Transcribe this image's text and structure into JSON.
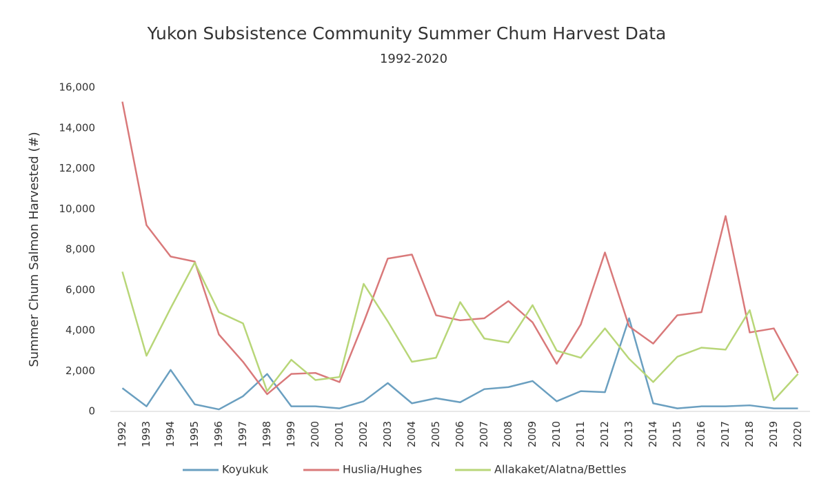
{
  "chart_data": {
    "type": "line",
    "title": "Yukon Subsistence Community Summer Chum Harvest Data",
    "subtitle": "1992-2020",
    "y_label": "Summer Chum Salmon Harvested (#)",
    "categories": [
      "1992",
      "1993",
      "1994",
      "1995",
      "1996",
      "1997",
      "1998",
      "1999",
      "2000",
      "2001",
      "2002",
      "2003",
      "2004",
      "2005",
      "2006",
      "2007",
      "2008",
      "2009",
      "2010",
      "2011",
      "2012",
      "2013",
      "2014",
      "2015",
      "2016",
      "2017",
      "2018",
      "2019",
      "2020"
    ],
    "series": [
      {
        "name": "Koyukuk",
        "color": "#6a9fc0",
        "values": [
          1150,
          250,
          2050,
          350,
          100,
          750,
          1850,
          250,
          250,
          150,
          500,
          1400,
          400,
          650,
          450,
          1100,
          1200,
          1500,
          500,
          1000,
          950,
          4600,
          400,
          150,
          250,
          250,
          300,
          150,
          150
        ]
      },
      {
        "name": "Huslia/Hughes",
        "color": "#d9797a",
        "values": [
          15300,
          9200,
          7650,
          7400,
          3800,
          2450,
          850,
          1850,
          1900,
          1450,
          4400,
          7550,
          7750,
          4750,
          4500,
          4600,
          5450,
          4400,
          2350,
          4300,
          7850,
          4200,
          3350,
          4750,
          4900,
          9650,
          3900,
          4100,
          1900
        ]
      },
      {
        "name": "Allakaket/Alatna/Bettles",
        "color": "#b8d678",
        "values": [
          6900,
          2750,
          5100,
          7350,
          4900,
          4350,
          1000,
          2550,
          1550,
          1700,
          6300,
          4450,
          2450,
          2650,
          5400,
          3600,
          3400,
          5250,
          3000,
          2650,
          4100,
          2600,
          1450,
          2700,
          3150,
          3050,
          5000,
          550,
          1850
        ]
      }
    ],
    "ylim": [
      0,
      16000
    ],
    "yticks": [
      0,
      {
        "value": 2000,
        "label": "2,000"
      },
      {
        "value": 4000,
        "label": "4,000"
      },
      {
        "value": 6000,
        "label": "6,000"
      },
      {
        "value": 8000,
        "label": "8,000"
      },
      {
        "value": 10000,
        "label": "10,000"
      },
      {
        "value": 12000,
        "label": "12,000"
      },
      {
        "value": 14000,
        "label": "14,000"
      },
      {
        "value": 16000,
        "label": "16,000"
      }
    ],
    "grid": false
  }
}
